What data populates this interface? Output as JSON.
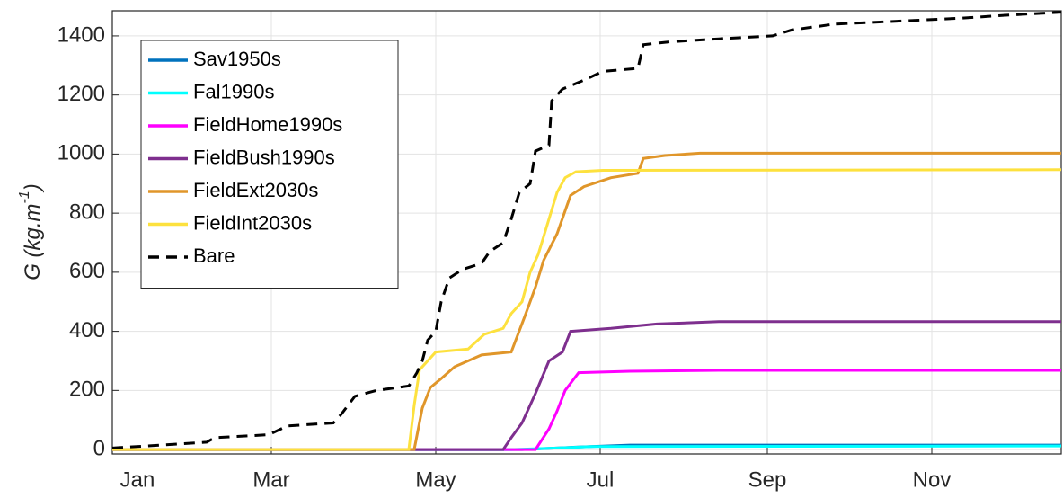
{
  "chart_data": {
    "type": "line",
    "ylabel": [
      "G (kg.m",
      "-1",
      ")"
    ],
    "xlim": [
      0,
      352
    ],
    "ylim": [
      -15,
      1485
    ],
    "xticks": [
      {
        "value": 0,
        "label": "Jan"
      },
      {
        "value": 59,
        "label": "Mar"
      },
      {
        "value": 120,
        "label": "May"
      },
      {
        "value": 181,
        "label": "Jul"
      },
      {
        "value": 243,
        "label": "Sep"
      },
      {
        "value": 304,
        "label": "Nov"
      }
    ],
    "yticks": [
      0,
      200,
      400,
      600,
      800,
      1000,
      1200,
      1400
    ],
    "grid": true,
    "legend": "upper-left",
    "series": [
      {
        "name": "Sav1950s",
        "color": "#0072bd",
        "dash": false,
        "x": [
          0,
          152,
          172,
          192,
          352
        ],
        "values": [
          0,
          0,
          8,
          15,
          15
        ]
      },
      {
        "name": "Fal1990s",
        "color": "#00ffff",
        "dash": false,
        "x": [
          0,
          148,
          165,
          178,
          352
        ],
        "values": [
          0,
          0,
          5,
          10,
          12
        ]
      },
      {
        "name": "FieldHome1990s",
        "color": "#ff00ff",
        "dash": false,
        "x": [
          0,
          157,
          162,
          165,
          168,
          173,
          192,
          225,
          352
        ],
        "values": [
          0,
          0,
          70,
          130,
          200,
          260,
          265,
          268,
          268
        ]
      },
      {
        "name": "FieldBush1990s",
        "color": "#7e2f8e",
        "dash": false,
        "x": [
          0,
          145,
          148,
          152,
          157,
          162,
          167,
          170,
          185,
          202,
          225,
          352
        ],
        "values": [
          0,
          0,
          40,
          90,
          190,
          300,
          330,
          400,
          410,
          425,
          433,
          433
        ]
      },
      {
        "name": "FieldExt2030s",
        "color": "#e0962a",
        "dash": false,
        "x": [
          0,
          112,
          115,
          118,
          122,
          127,
          137,
          148,
          153,
          157,
          160,
          165,
          170,
          175,
          185,
          195,
          197,
          205,
          218,
          352
        ],
        "values": [
          0,
          0,
          140,
          210,
          240,
          280,
          320,
          330,
          450,
          550,
          640,
          730,
          860,
          890,
          920,
          935,
          985,
          995,
          1003,
          1003
        ]
      },
      {
        "name": "FieldInt2030s",
        "color": "#fde13e",
        "dash": false,
        "x": [
          0,
          110,
          112,
          114,
          117,
          120,
          132,
          138,
          145,
          148,
          152,
          155,
          158,
          162,
          165,
          168,
          172,
          182,
          352
        ],
        "values": [
          0,
          0,
          150,
          270,
          300,
          330,
          340,
          390,
          410,
          460,
          500,
          600,
          660,
          780,
          870,
          920,
          940,
          945,
          947
        ]
      },
      {
        "name": "Bare",
        "color": "#000000",
        "dash": true,
        "x": [
          0,
          18,
          35,
          38,
          58,
          65,
          82,
          85,
          90,
          98,
          110,
          113,
          115,
          117,
          120,
          122,
          125,
          130,
          137,
          140,
          145,
          148,
          151,
          155,
          157,
          162,
          163,
          167,
          175,
          182,
          195,
          197,
          207,
          225,
          245,
          252,
          268,
          292,
          315,
          332,
          352
        ],
        "values": [
          5,
          15,
          25,
          40,
          50,
          80,
          90,
          120,
          180,
          200,
          215,
          260,
          300,
          370,
          400,
          500,
          580,
          610,
          630,
          670,
          700,
          780,
          870,
          900,
          1010,
          1030,
          1180,
          1220,
          1250,
          1280,
          1290,
          1370,
          1380,
          1390,
          1400,
          1420,
          1440,
          1450,
          1460,
          1470,
          1480
        ]
      }
    ]
  }
}
